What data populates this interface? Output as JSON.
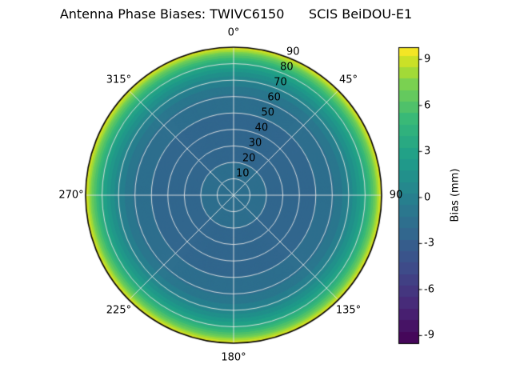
{
  "chart_data": {
    "type": "polar_contour",
    "title": "Antenna Phase Biases: TWIVC6150      SCIS BeiDOU-E1",
    "azimuth_ticks": [
      {
        "angle_deg": 0,
        "label": "0°"
      },
      {
        "angle_deg": 45,
        "label": "45°"
      },
      {
        "angle_deg": 90,
        "label": "90"
      },
      {
        "angle_deg": 135,
        "label": "135°"
      },
      {
        "angle_deg": 180,
        "label": "180°"
      },
      {
        "angle_deg": 225,
        "label": "225°"
      },
      {
        "angle_deg": 270,
        "label": "270°"
      },
      {
        "angle_deg": 315,
        "label": "315°"
      }
    ],
    "radial_ticks": {
      "angle_deg": 22.5,
      "values": [
        10,
        20,
        30,
        40,
        50,
        60,
        70,
        80,
        90
      ]
    },
    "max_zenith_deg": 90,
    "profile": {
      "comment": "azimuth-symmetric bias vs zenith angle read from contour colors",
      "zenith_deg": [
        0,
        10,
        20,
        30,
        40,
        50,
        55,
        60,
        65,
        70,
        75,
        80,
        85,
        88,
        90
      ],
      "bias_mm": [
        -1.2,
        -1.7,
        -2.0,
        -2.15,
        -2.2,
        -2.0,
        -1.8,
        -1.4,
        -0.8,
        0.3,
        1.7,
        3.5,
        6.2,
        8.2,
        9.6
      ]
    },
    "colorbar": {
      "label": "Bias (mm)",
      "ticks": [
        -9,
        -6,
        -3,
        0,
        3,
        6,
        9
      ],
      "vmin": -9.5,
      "vmax": 9.8,
      "level_step": 0.75
    },
    "colormap": {
      "name": "viridis",
      "anchors": [
        [
          0.0,
          68,
          1,
          84
        ],
        [
          0.125,
          72,
          40,
          120
        ],
        [
          0.25,
          62,
          74,
          137
        ],
        [
          0.375,
          49,
          104,
          142
        ],
        [
          0.5,
          38,
          130,
          142
        ],
        [
          0.625,
          31,
          158,
          137
        ],
        [
          0.75,
          53,
          183,
          121
        ],
        [
          0.875,
          122,
          209,
          81
        ],
        [
          0.9375,
          187,
          223,
          39
        ],
        [
          1.0,
          253,
          231,
          37
        ]
      ]
    },
    "grid": {
      "line_color": "rgba(228,228,228,0.9)",
      "outline_color": "#000000",
      "circle_step_deg": 10,
      "spoke_step_deg": 45
    }
  }
}
